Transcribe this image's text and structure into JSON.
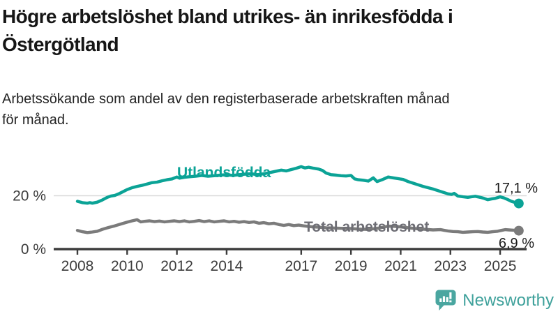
{
  "header": {
    "title": "Högre arbetslöshet bland utrikes- än inrikesfödda i\nÖstergötland",
    "subtitle": "Arbetssökande som andel av den registerbaserade arbetskraften månad\nför månad."
  },
  "chart_data": {
    "type": "line",
    "title": "Högre arbetslöshet bland utrikes- än inrikesfödda i Östergötland",
    "subtitle": "Arbetssökande som andel av den registerbaserade arbetskraften månad för månad.",
    "xlabel": "",
    "ylabel": "",
    "xlim": [
      2007.1,
      2026.1
    ],
    "ylim": [
      0,
      34.5
    ],
    "grid": "horizontal-gridline-at-20-only",
    "legend_position": "inline-labels-on-lines",
    "x_ticks": [
      2008,
      2010,
      2012,
      2014,
      2017,
      2019,
      2021,
      2023,
      2025
    ],
    "y_ticks": [
      {
        "value": 0,
        "label": "0 %"
      },
      {
        "value": 20,
        "label": "20 %"
      }
    ],
    "series": [
      {
        "name": "Utlandsfödda",
        "color": "#0ba396",
        "label_color": "#0ba396",
        "end_value": 17.1,
        "end_label": "17,1 %",
        "points": [
          [
            2008.0,
            17.9
          ],
          [
            2008.2,
            17.4
          ],
          [
            2008.4,
            17.2
          ],
          [
            2008.5,
            17.4
          ],
          [
            2008.6,
            17.2
          ],
          [
            2008.8,
            17.6
          ],
          [
            2009.0,
            18.4
          ],
          [
            2009.2,
            19.4
          ],
          [
            2009.35,
            19.9
          ],
          [
            2009.5,
            20.1
          ],
          [
            2009.7,
            20.9
          ],
          [
            2009.85,
            21.6
          ],
          [
            2010.0,
            22.3
          ],
          [
            2010.2,
            23.0
          ],
          [
            2010.4,
            23.5
          ],
          [
            2010.6,
            23.9
          ],
          [
            2010.8,
            24.4
          ],
          [
            2011.0,
            24.9
          ],
          [
            2011.2,
            25.1
          ],
          [
            2011.4,
            25.6
          ],
          [
            2011.6,
            26.0
          ],
          [
            2011.8,
            26.3
          ],
          [
            2012.0,
            27.0
          ],
          [
            2012.1,
            26.6
          ],
          [
            2012.3,
            26.9
          ],
          [
            2012.5,
            27.1
          ],
          [
            2012.75,
            27.3
          ],
          [
            2013.0,
            27.6
          ],
          [
            2013.25,
            27.3
          ],
          [
            2013.5,
            27.5
          ],
          [
            2013.75,
            27.7
          ],
          [
            2014.0,
            27.9
          ],
          [
            2014.25,
            27.6
          ],
          [
            2014.5,
            27.9
          ],
          [
            2014.75,
            28.1
          ],
          [
            2015.0,
            28.2
          ],
          [
            2015.25,
            27.9
          ],
          [
            2015.5,
            28.2
          ],
          [
            2015.75,
            28.7
          ],
          [
            2016.0,
            29.2
          ],
          [
            2016.2,
            29.6
          ],
          [
            2016.4,
            29.3
          ],
          [
            2016.6,
            29.8
          ],
          [
            2016.8,
            30.3
          ],
          [
            2017.0,
            30.9
          ],
          [
            2017.15,
            30.4
          ],
          [
            2017.3,
            30.7
          ],
          [
            2017.5,
            30.3
          ],
          [
            2017.7,
            30.0
          ],
          [
            2017.85,
            29.5
          ],
          [
            2018.0,
            28.5
          ],
          [
            2018.2,
            27.9
          ],
          [
            2018.4,
            27.7
          ],
          [
            2018.6,
            27.5
          ],
          [
            2018.8,
            27.4
          ],
          [
            2019.0,
            27.6
          ],
          [
            2019.15,
            26.3
          ],
          [
            2019.3,
            26.0
          ],
          [
            2019.5,
            25.8
          ],
          [
            2019.7,
            25.5
          ],
          [
            2019.9,
            26.7
          ],
          [
            2020.05,
            25.3
          ],
          [
            2020.25,
            26.0
          ],
          [
            2020.5,
            27.0
          ],
          [
            2020.7,
            26.7
          ],
          [
            2020.9,
            26.4
          ],
          [
            2021.1,
            26.1
          ],
          [
            2021.3,
            25.3
          ],
          [
            2021.5,
            24.7
          ],
          [
            2021.7,
            24.1
          ],
          [
            2021.9,
            23.5
          ],
          [
            2022.1,
            23.0
          ],
          [
            2022.3,
            22.5
          ],
          [
            2022.5,
            21.9
          ],
          [
            2022.7,
            21.3
          ],
          [
            2022.9,
            20.7
          ],
          [
            2023.05,
            20.5
          ],
          [
            2023.15,
            20.9
          ],
          [
            2023.3,
            19.9
          ],
          [
            2023.5,
            19.6
          ],
          [
            2023.7,
            19.4
          ],
          [
            2023.85,
            19.6
          ],
          [
            2024.0,
            19.8
          ],
          [
            2024.2,
            19.4
          ],
          [
            2024.35,
            19.0
          ],
          [
            2024.5,
            18.5
          ],
          [
            2024.65,
            18.8
          ],
          [
            2024.8,
            19.0
          ],
          [
            2025.0,
            19.6
          ],
          [
            2025.15,
            19.2
          ],
          [
            2025.3,
            18.6
          ],
          [
            2025.45,
            17.9
          ],
          [
            2025.6,
            17.5
          ],
          [
            2025.75,
            17.1
          ]
        ]
      },
      {
        "name": "Total arbetslöshet",
        "color": "#7b7b7b",
        "label_color": "#6d6d74",
        "end_value": 6.9,
        "end_label": "6,9 %",
        "points": [
          [
            2008.0,
            7.0
          ],
          [
            2008.2,
            6.5
          ],
          [
            2008.4,
            6.2
          ],
          [
            2008.6,
            6.4
          ],
          [
            2008.8,
            6.7
          ],
          [
            2009.0,
            7.4
          ],
          [
            2009.25,
            8.1
          ],
          [
            2009.5,
            8.7
          ],
          [
            2009.75,
            9.4
          ],
          [
            2010.0,
            10.1
          ],
          [
            2010.2,
            10.6
          ],
          [
            2010.4,
            11.0
          ],
          [
            2010.55,
            10.2
          ],
          [
            2010.7,
            10.4
          ],
          [
            2010.9,
            10.6
          ],
          [
            2011.1,
            10.3
          ],
          [
            2011.3,
            10.5
          ],
          [
            2011.5,
            10.2
          ],
          [
            2011.7,
            10.4
          ],
          [
            2011.9,
            10.6
          ],
          [
            2012.1,
            10.3
          ],
          [
            2012.3,
            10.6
          ],
          [
            2012.5,
            10.2
          ],
          [
            2012.7,
            10.4
          ],
          [
            2012.9,
            10.7
          ],
          [
            2013.1,
            10.3
          ],
          [
            2013.3,
            10.6
          ],
          [
            2013.5,
            10.2
          ],
          [
            2013.7,
            10.4
          ],
          [
            2013.9,
            10.6
          ],
          [
            2014.1,
            10.2
          ],
          [
            2014.3,
            10.4
          ],
          [
            2014.5,
            10.1
          ],
          [
            2014.7,
            10.3
          ],
          [
            2014.9,
            10.0
          ],
          [
            2015.1,
            10.2
          ],
          [
            2015.3,
            9.7
          ],
          [
            2015.5,
            9.9
          ],
          [
            2015.7,
            9.5
          ],
          [
            2015.9,
            9.7
          ],
          [
            2016.1,
            9.2
          ],
          [
            2016.3,
            8.9
          ],
          [
            2016.5,
            9.2
          ],
          [
            2016.7,
            8.8
          ],
          [
            2016.9,
            9.0
          ],
          [
            2017.1,
            8.7
          ],
          [
            2017.4,
            8.4
          ],
          [
            2017.7,
            8.2
          ],
          [
            2018.0,
            8.0
          ],
          [
            2018.3,
            7.9
          ],
          [
            2018.6,
            7.8
          ],
          [
            2019.0,
            7.7
          ],
          [
            2019.3,
            7.5
          ],
          [
            2019.6,
            7.4
          ],
          [
            2019.9,
            7.6
          ],
          [
            2020.2,
            8.0
          ],
          [
            2020.5,
            8.6
          ],
          [
            2020.8,
            8.5
          ],
          [
            2021.1,
            8.2
          ],
          [
            2021.4,
            7.9
          ],
          [
            2021.7,
            7.6
          ],
          [
            2022.0,
            7.4
          ],
          [
            2022.3,
            7.2
          ],
          [
            2022.6,
            7.3
          ],
          [
            2022.9,
            6.8
          ],
          [
            2023.1,
            6.6
          ],
          [
            2023.3,
            6.5
          ],
          [
            2023.5,
            6.3
          ],
          [
            2023.7,
            6.4
          ],
          [
            2023.9,
            6.5
          ],
          [
            2024.1,
            6.6
          ],
          [
            2024.3,
            6.4
          ],
          [
            2024.5,
            6.3
          ],
          [
            2024.7,
            6.5
          ],
          [
            2024.9,
            6.7
          ],
          [
            2025.05,
            7.0
          ],
          [
            2025.2,
            7.3
          ],
          [
            2025.35,
            7.2
          ],
          [
            2025.5,
            7.1
          ],
          [
            2025.65,
            7.0
          ],
          [
            2025.75,
            6.9
          ]
        ]
      }
    ]
  },
  "branding": {
    "name": "Newsworthy",
    "color": "#3fa19b"
  },
  "colors": {
    "axis": "#3d3d3d",
    "gridline": "#dadada",
    "tick_label": "#3d3d3d",
    "value_label": "#1c1c1c"
  }
}
